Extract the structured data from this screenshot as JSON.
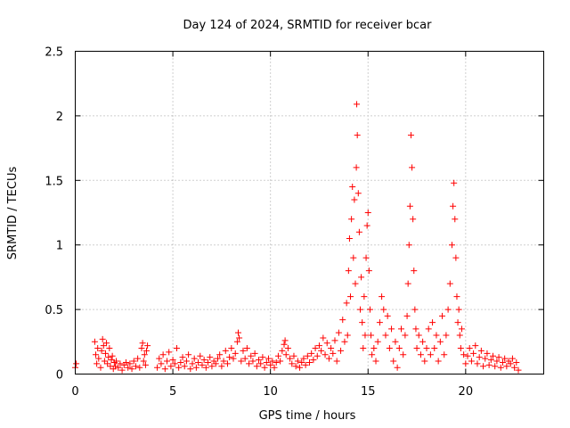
{
  "chart_data": {
    "type": "scatter",
    "title": "Day 124 of 2024, SRMTID for receiver bcar",
    "xlabel": "GPS time / hours",
    "ylabel": "SRMTID / TECUs",
    "xlim": [
      0,
      24
    ],
    "ylim": [
      0,
      2.5
    ],
    "xticks": [
      0,
      5,
      10,
      15,
      20
    ],
    "yticks": [
      0,
      0.5,
      1,
      1.5,
      2,
      2.5
    ],
    "x_tick_labels": [
      "0",
      "5",
      "10",
      "15",
      "20"
    ],
    "y_tick_labels": [
      "0",
      "0.5",
      "1",
      "1.5",
      "2",
      "2.5"
    ],
    "grid": true,
    "marker": "+",
    "series": [
      {
        "name": "SRMTID",
        "color": "#ff0000",
        "points": [
          [
            0.0,
            0.05
          ],
          [
            0.05,
            0.08
          ],
          [
            1.0,
            0.25
          ],
          [
            1.05,
            0.15
          ],
          [
            1.1,
            0.08
          ],
          [
            1.15,
            0.2
          ],
          [
            1.2,
            0.12
          ],
          [
            1.3,
            0.05
          ],
          [
            1.35,
            0.18
          ],
          [
            1.4,
            0.27
          ],
          [
            1.45,
            0.22
          ],
          [
            1.5,
            0.1
          ],
          [
            1.55,
            0.16
          ],
          [
            1.6,
            0.24
          ],
          [
            1.65,
            0.08
          ],
          [
            1.7,
            0.13
          ],
          [
            1.75,
            0.2
          ],
          [
            1.8,
            0.06
          ],
          [
            1.85,
            0.11
          ],
          [
            1.9,
            0.14
          ],
          [
            1.95,
            0.04
          ],
          [
            2.0,
            0.09
          ],
          [
            2.05,
            0.06
          ],
          [
            2.1,
            0.1
          ],
          [
            2.2,
            0.05
          ],
          [
            2.3,
            0.08
          ],
          [
            2.4,
            0.03
          ],
          [
            2.5,
            0.07
          ],
          [
            2.6,
            0.09
          ],
          [
            2.7,
            0.05
          ],
          [
            2.8,
            0.08
          ],
          [
            2.9,
            0.04
          ],
          [
            3.0,
            0.1
          ],
          [
            3.1,
            0.06
          ],
          [
            3.2,
            0.12
          ],
          [
            3.3,
            0.05
          ],
          [
            3.4,
            0.2
          ],
          [
            3.45,
            0.24
          ],
          [
            3.5,
            0.1
          ],
          [
            3.55,
            0.15
          ],
          [
            3.6,
            0.07
          ],
          [
            3.65,
            0.18
          ],
          [
            3.7,
            0.22
          ],
          [
            4.2,
            0.05
          ],
          [
            4.3,
            0.12
          ],
          [
            4.4,
            0.08
          ],
          [
            4.5,
            0.15
          ],
          [
            4.6,
            0.04
          ],
          [
            4.7,
            0.1
          ],
          [
            4.8,
            0.17
          ],
          [
            4.9,
            0.06
          ],
          [
            5.0,
            0.11
          ],
          [
            5.1,
            0.08
          ],
          [
            5.2,
            0.2
          ],
          [
            5.3,
            0.05
          ],
          [
            5.4,
            0.09
          ],
          [
            5.5,
            0.13
          ],
          [
            5.6,
            0.06
          ],
          [
            5.7,
            0.1
          ],
          [
            5.8,
            0.15
          ],
          [
            5.9,
            0.04
          ],
          [
            6.0,
            0.08
          ],
          [
            6.1,
            0.12
          ],
          [
            6.2,
            0.05
          ],
          [
            6.3,
            0.09
          ],
          [
            6.4,
            0.14
          ],
          [
            6.5,
            0.07
          ],
          [
            6.6,
            0.11
          ],
          [
            6.7,
            0.05
          ],
          [
            6.8,
            0.09
          ],
          [
            6.9,
            0.13
          ],
          [
            7.0,
            0.06
          ],
          [
            7.1,
            0.1
          ],
          [
            7.2,
            0.08
          ],
          [
            7.3,
            0.12
          ],
          [
            7.4,
            0.15
          ],
          [
            7.5,
            0.06
          ],
          [
            7.6,
            0.1
          ],
          [
            7.7,
            0.18
          ],
          [
            7.8,
            0.08
          ],
          [
            7.9,
            0.13
          ],
          [
            8.0,
            0.2
          ],
          [
            8.1,
            0.12
          ],
          [
            8.2,
            0.16
          ],
          [
            8.3,
            0.25
          ],
          [
            8.35,
            0.32
          ],
          [
            8.4,
            0.28
          ],
          [
            8.5,
            0.1
          ],
          [
            8.6,
            0.18
          ],
          [
            8.7,
            0.12
          ],
          [
            8.8,
            0.2
          ],
          [
            8.9,
            0.08
          ],
          [
            9.0,
            0.14
          ],
          [
            9.1,
            0.1
          ],
          [
            9.2,
            0.16
          ],
          [
            9.3,
            0.06
          ],
          [
            9.4,
            0.11
          ],
          [
            9.5,
            0.08
          ],
          [
            9.6,
            0.13
          ],
          [
            9.7,
            0.05
          ],
          [
            9.8,
            0.09
          ],
          [
            9.9,
            0.12
          ],
          [
            10.0,
            0.07
          ],
          [
            10.1,
            0.1
          ],
          [
            10.2,
            0.05
          ],
          [
            10.3,
            0.09
          ],
          [
            10.4,
            0.14
          ],
          [
            10.5,
            0.1
          ],
          [
            10.6,
            0.18
          ],
          [
            10.7,
            0.23
          ],
          [
            10.75,
            0.26
          ],
          [
            10.8,
            0.15
          ],
          [
            10.9,
            0.2
          ],
          [
            11.0,
            0.12
          ],
          [
            11.1,
            0.08
          ],
          [
            11.2,
            0.14
          ],
          [
            11.3,
            0.06
          ],
          [
            11.4,
            0.1
          ],
          [
            11.5,
            0.05
          ],
          [
            11.6,
            0.09
          ],
          [
            11.7,
            0.12
          ],
          [
            11.8,
            0.07
          ],
          [
            11.9,
            0.14
          ],
          [
            12.0,
            0.09
          ],
          [
            12.1,
            0.16
          ],
          [
            12.2,
            0.11
          ],
          [
            12.3,
            0.2
          ],
          [
            12.4,
            0.14
          ],
          [
            12.5,
            0.22
          ],
          [
            12.6,
            0.18
          ],
          [
            12.7,
            0.28
          ],
          [
            12.8,
            0.15
          ],
          [
            12.9,
            0.24
          ],
          [
            13.0,
            0.12
          ],
          [
            13.1,
            0.2
          ],
          [
            13.2,
            0.16
          ],
          [
            13.3,
            0.26
          ],
          [
            13.4,
            0.1
          ],
          [
            13.5,
            0.32
          ],
          [
            13.6,
            0.18
          ],
          [
            13.7,
            0.42
          ],
          [
            13.8,
            0.25
          ],
          [
            13.9,
            0.55
          ],
          [
            13.95,
            0.3
          ],
          [
            14.0,
            0.8
          ],
          [
            14.05,
            1.05
          ],
          [
            14.1,
            0.6
          ],
          [
            14.15,
            1.2
          ],
          [
            14.2,
            1.45
          ],
          [
            14.25,
            0.9
          ],
          [
            14.3,
            1.35
          ],
          [
            14.35,
            0.7
          ],
          [
            14.4,
            1.6
          ],
          [
            14.42,
            2.09
          ],
          [
            14.45,
            1.85
          ],
          [
            14.5,
            1.4
          ],
          [
            14.55,
            1.1
          ],
          [
            14.6,
            0.5
          ],
          [
            14.65,
            0.75
          ],
          [
            14.7,
            0.4
          ],
          [
            14.75,
            0.2
          ],
          [
            14.8,
            0.6
          ],
          [
            14.85,
            0.3
          ],
          [
            14.9,
            0.9
          ],
          [
            14.95,
            1.15
          ],
          [
            15.0,
            1.25
          ],
          [
            15.05,
            0.8
          ],
          [
            15.1,
            0.5
          ],
          [
            15.15,
            0.3
          ],
          [
            15.2,
            0.15
          ],
          [
            15.3,
            0.2
          ],
          [
            15.4,
            0.1
          ],
          [
            15.5,
            0.25
          ],
          [
            15.6,
            0.4
          ],
          [
            15.7,
            0.6
          ],
          [
            15.8,
            0.5
          ],
          [
            15.9,
            0.3
          ],
          [
            16.0,
            0.45
          ],
          [
            16.1,
            0.2
          ],
          [
            16.2,
            0.35
          ],
          [
            16.3,
            0.1
          ],
          [
            16.4,
            0.25
          ],
          [
            16.5,
            0.05
          ],
          [
            16.6,
            0.2
          ],
          [
            16.7,
            0.35
          ],
          [
            16.8,
            0.15
          ],
          [
            16.9,
            0.3
          ],
          [
            17.0,
            0.45
          ],
          [
            17.05,
            0.7
          ],
          [
            17.1,
            1.0
          ],
          [
            17.15,
            1.3
          ],
          [
            17.2,
            1.85
          ],
          [
            17.25,
            1.6
          ],
          [
            17.3,
            1.2
          ],
          [
            17.35,
            0.8
          ],
          [
            17.4,
            0.5
          ],
          [
            17.45,
            0.35
          ],
          [
            17.5,
            0.2
          ],
          [
            17.6,
            0.3
          ],
          [
            17.7,
            0.15
          ],
          [
            17.8,
            0.25
          ],
          [
            17.9,
            0.1
          ],
          [
            18.0,
            0.2
          ],
          [
            18.1,
            0.35
          ],
          [
            18.2,
            0.15
          ],
          [
            18.3,
            0.4
          ],
          [
            18.4,
            0.2
          ],
          [
            18.5,
            0.3
          ],
          [
            18.6,
            0.1
          ],
          [
            18.7,
            0.25
          ],
          [
            18.8,
            0.45
          ],
          [
            18.9,
            0.15
          ],
          [
            19.0,
            0.3
          ],
          [
            19.1,
            0.5
          ],
          [
            19.2,
            0.7
          ],
          [
            19.3,
            1.0
          ],
          [
            19.35,
            1.3
          ],
          [
            19.4,
            1.48
          ],
          [
            19.45,
            1.2
          ],
          [
            19.5,
            0.9
          ],
          [
            19.55,
            0.6
          ],
          [
            19.6,
            0.4
          ],
          [
            19.65,
            0.5
          ],
          [
            19.7,
            0.3
          ],
          [
            19.75,
            0.2
          ],
          [
            19.8,
            0.35
          ],
          [
            19.9,
            0.15
          ],
          [
            20.0,
            0.08
          ],
          [
            20.1,
            0.14
          ],
          [
            20.2,
            0.2
          ],
          [
            20.3,
            0.1
          ],
          [
            20.4,
            0.16
          ],
          [
            20.5,
            0.22
          ],
          [
            20.6,
            0.08
          ],
          [
            20.7,
            0.13
          ],
          [
            20.8,
            0.18
          ],
          [
            20.9,
            0.06
          ],
          [
            21.0,
            0.12
          ],
          [
            21.1,
            0.16
          ],
          [
            21.2,
            0.07
          ],
          [
            21.3,
            0.11
          ],
          [
            21.4,
            0.14
          ],
          [
            21.5,
            0.06
          ],
          [
            21.6,
            0.1
          ],
          [
            21.7,
            0.13
          ],
          [
            21.8,
            0.05
          ],
          [
            21.9,
            0.09
          ],
          [
            22.0,
            0.12
          ],
          [
            22.1,
            0.06
          ],
          [
            22.2,
            0.1
          ],
          [
            22.3,
            0.08
          ],
          [
            22.4,
            0.12
          ],
          [
            22.5,
            0.05
          ],
          [
            22.6,
            0.09
          ],
          [
            22.7,
            0.03
          ]
        ]
      }
    ]
  }
}
